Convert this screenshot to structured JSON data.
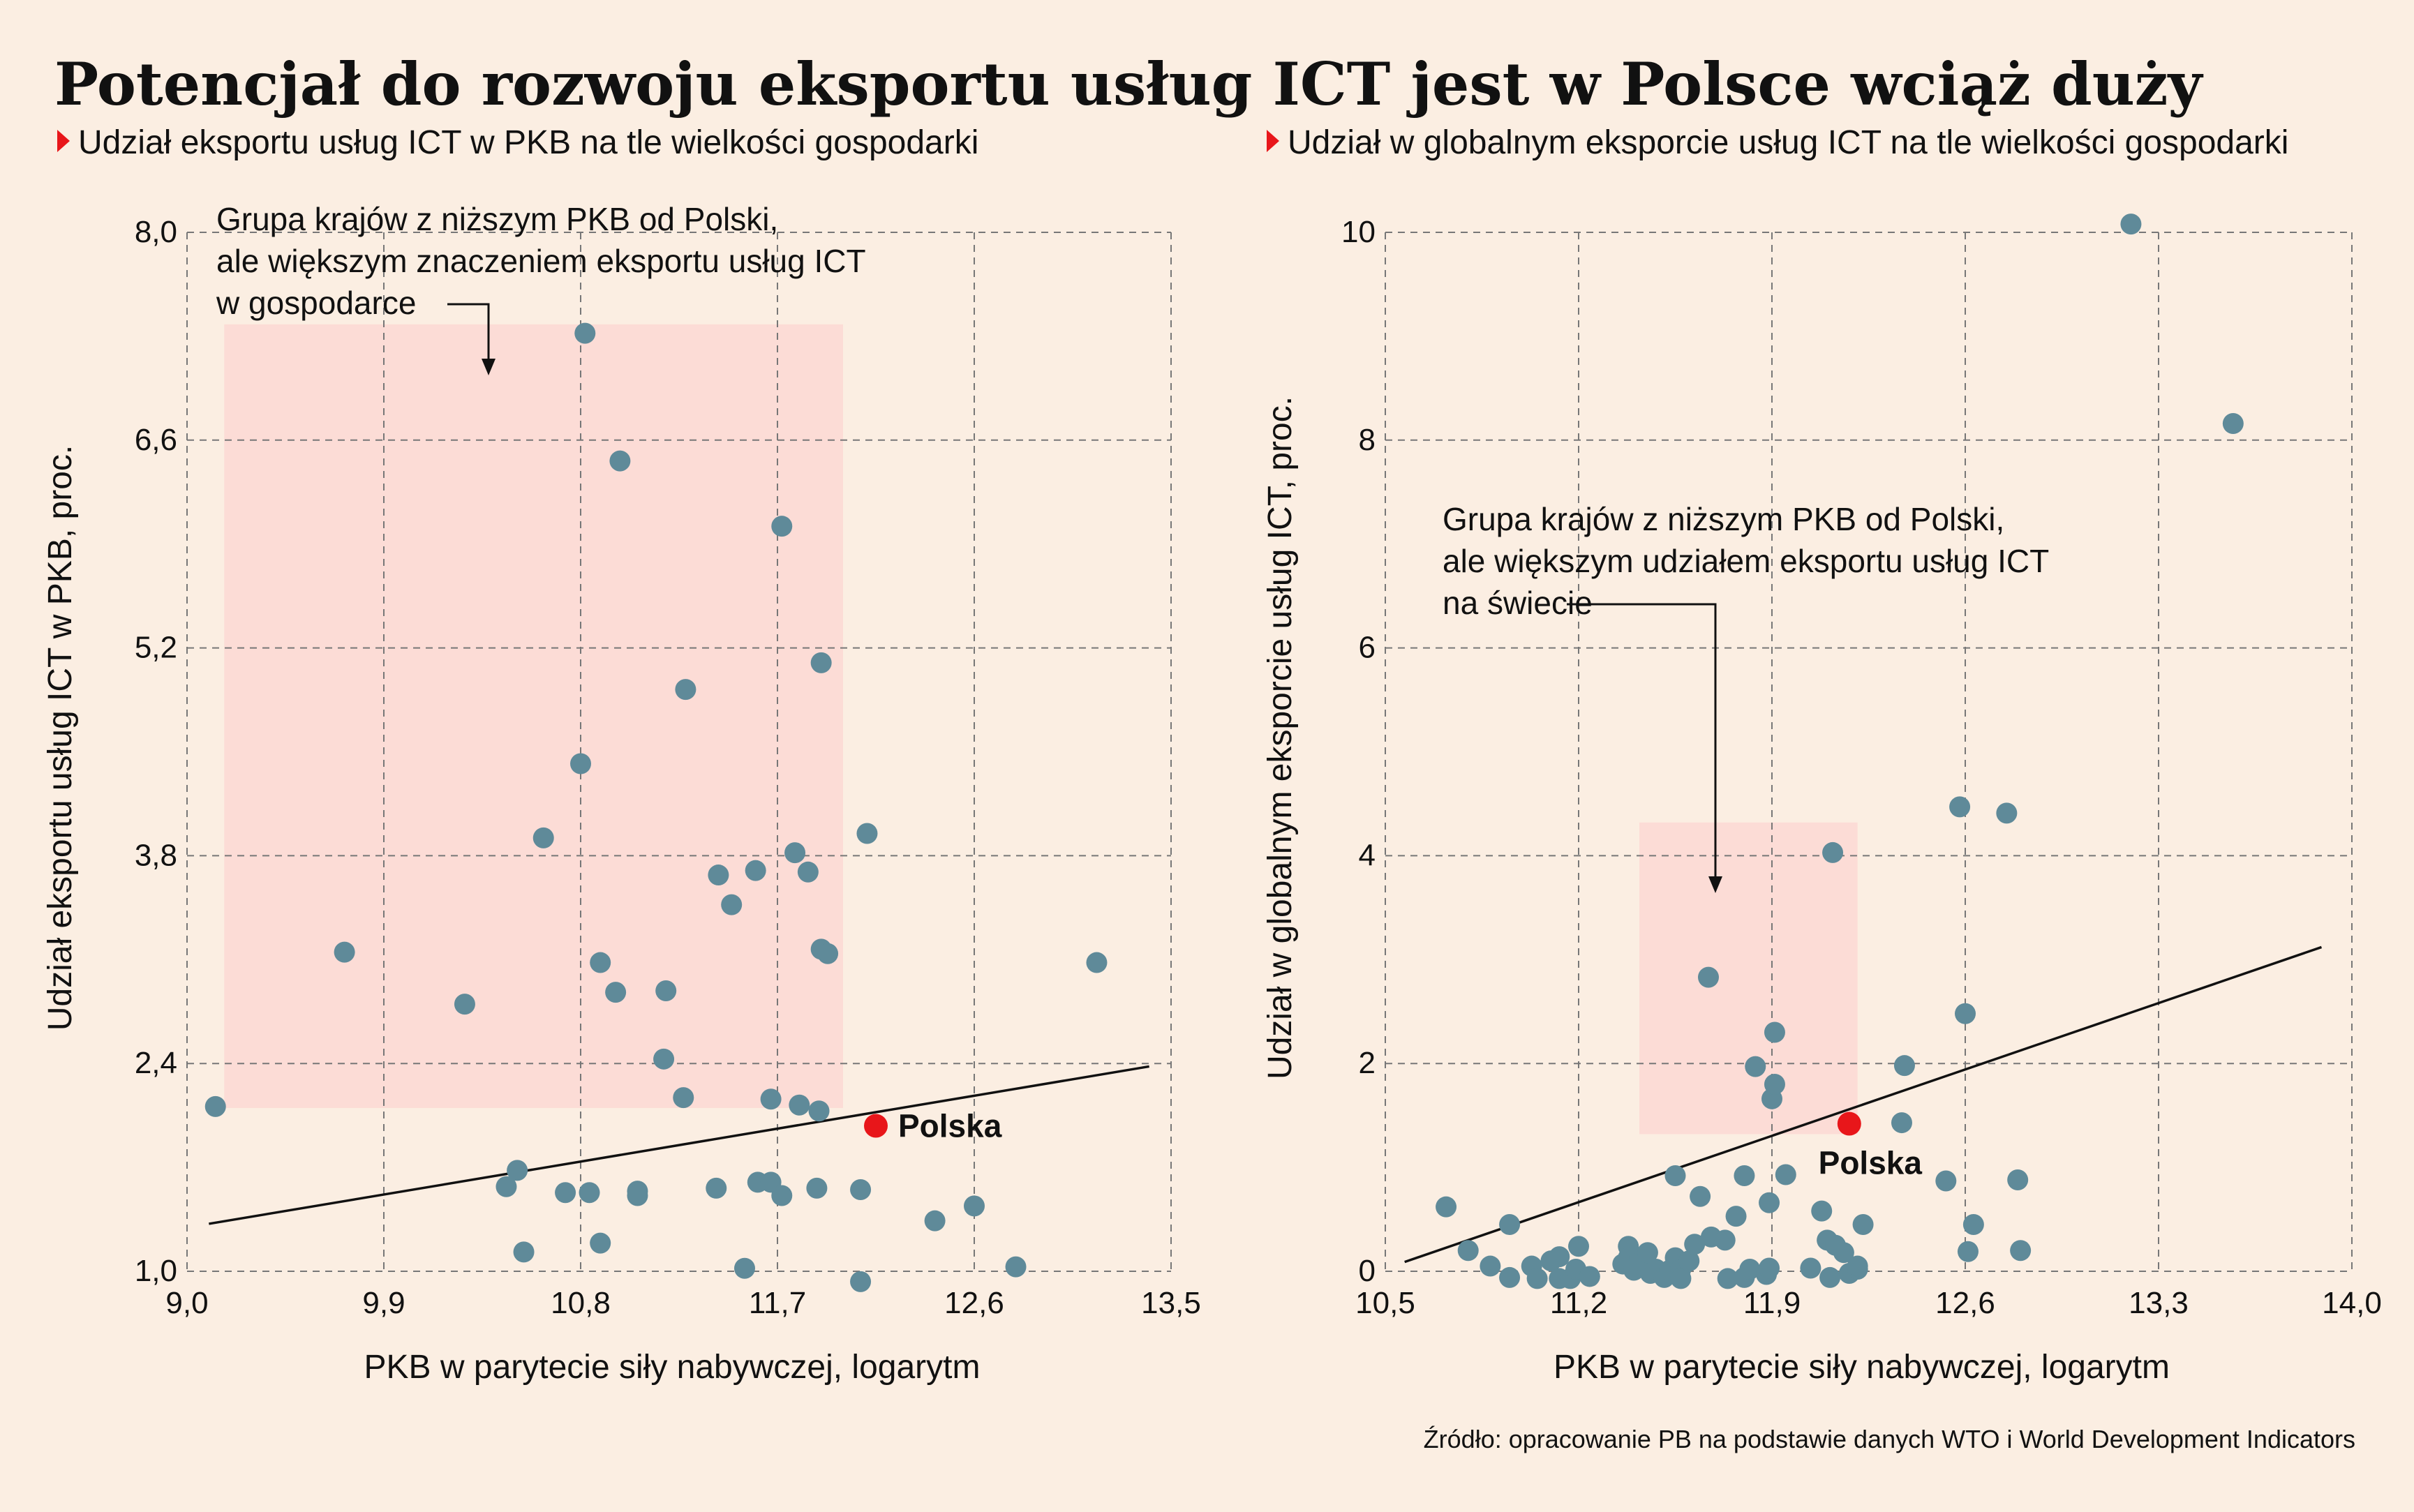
{
  "title": "Potencjał do rozwoju eksportu usług ICT jest w Polsce wciąż duży",
  "source": "Źródło: opracowanie PB na podstawie danych WTO i World Development Indicators",
  "colors": {
    "background": "#fbeee2",
    "point": "#5f8a99",
    "highlight": "#e8161a",
    "shade": "#fcdcd6",
    "marker": "#e8161a"
  },
  "chart_data": [
    {
      "type": "scatter",
      "subtitle": "Udział eksportu usług ICT w PKB na tle wielkości gospodarki",
      "xlabel": "PKB w parytecie siły nabywczej, logarytm",
      "ylabel": "Udział eksportu usług ICT w PKB, proc.",
      "xlim": [
        9.0,
        13.5
      ],
      "ylim": [
        1.0,
        8.0
      ],
      "xticks": [
        "9,0",
        "9,9",
        "10,8",
        "11,7",
        "12,6",
        "13,5"
      ],
      "yticks": [
        "1,0",
        "2,4",
        "3,8",
        "5,2",
        "6,6",
        "8,0"
      ],
      "grid": true,
      "annotation": [
        "Grupa krajów z niższym PKB od Polski,",
        "ale większym znaczeniem eksportu usług ICT",
        "w gospodarce"
      ],
      "highlight_label": "Polska",
      "highlight_point": [
        12.15,
        1.98
      ],
      "highlight_region": {
        "x": [
          9.17,
          12.0
        ],
        "y": [
          2.1,
          7.38
        ]
      },
      "trend_line": [
        [
          9.1,
          1.32
        ],
        [
          13.4,
          2.38
        ]
      ],
      "points": [
        [
          9.13,
          2.11
        ],
        [
          9.72,
          3.15
        ],
        [
          10.27,
          2.8
        ],
        [
          10.46,
          1.57
        ],
        [
          10.51,
          1.68
        ],
        [
          10.54,
          1.13
        ],
        [
          10.63,
          3.92
        ],
        [
          10.73,
          1.53
        ],
        [
          10.8,
          4.42
        ],
        [
          10.82,
          7.32
        ],
        [
          10.84,
          1.53
        ],
        [
          10.89,
          1.19
        ],
        [
          10.89,
          3.08
        ],
        [
          10.96,
          2.88
        ],
        [
          10.98,
          6.46
        ],
        [
          11.06,
          1.54
        ],
        [
          11.06,
          1.51
        ],
        [
          11.18,
          2.43
        ],
        [
          11.19,
          2.89
        ],
        [
          11.27,
          2.17
        ],
        [
          11.28,
          4.92
        ],
        [
          11.42,
          1.56
        ],
        [
          11.43,
          3.67
        ],
        [
          11.49,
          3.47
        ],
        [
          11.55,
          1.02
        ],
        [
          11.6,
          3.7
        ],
        [
          11.61,
          1.6
        ],
        [
          11.67,
          2.16
        ],
        [
          11.67,
          1.6
        ],
        [
          11.72,
          6.02
        ],
        [
          11.72,
          1.51
        ],
        [
          11.78,
          3.82
        ],
        [
          11.8,
          2.12
        ],
        [
          11.84,
          3.69
        ],
        [
          11.88,
          1.56
        ],
        [
          11.89,
          2.08
        ],
        [
          11.9,
          5.1
        ],
        [
          11.9,
          3.17
        ],
        [
          11.93,
          3.14
        ],
        [
          12.08,
          1.55
        ],
        [
          12.08,
          0.93
        ],
        [
          12.11,
          3.95
        ],
        [
          12.42,
          1.34
        ],
        [
          12.6,
          1.44
        ],
        [
          12.79,
          1.03
        ],
        [
          13.16,
          3.08
        ]
      ]
    },
    {
      "type": "scatter",
      "subtitle": "Udział w globalnym eksporcie usług ICT na tle wielkości gospodarki",
      "xlabel": "PKB w parytecie siły nabywczej, logarytm",
      "ylabel": "Udział w globalnym eksporcie usług ICT, proc.",
      "xlim": [
        10.5,
        14.0
      ],
      "ylim": [
        0,
        10
      ],
      "xticks": [
        "10,5",
        "11,2",
        "11,9",
        "12,6",
        "13,3",
        "14,0"
      ],
      "yticks": [
        "0",
        "2",
        "4",
        "6",
        "8",
        "10"
      ],
      "grid": true,
      "annotation": [
        "Grupa krajów z niższym PKB od Polski,",
        "ale większym udziałem eksportu usług ICT",
        "na świecie"
      ],
      "highlight_label": "Polska",
      "highlight_point": [
        12.18,
        1.42
      ],
      "highlight_region": {
        "x": [
          11.42,
          12.21
        ],
        "y": [
          1.32,
          4.32
        ]
      },
      "trend_line": [
        [
          10.57,
          0.09
        ],
        [
          13.89,
          3.12
        ]
      ],
      "points": [
        [
          10.72,
          0.62
        ],
        [
          10.8,
          0.2
        ],
        [
          10.88,
          0.05
        ],
        [
          10.95,
          -0.06
        ],
        [
          10.95,
          0.45
        ],
        [
          11.03,
          0.05
        ],
        [
          11.05,
          -0.07
        ],
        [
          11.1,
          0.1
        ],
        [
          11.13,
          0.14
        ],
        [
          11.13,
          -0.07
        ],
        [
          11.17,
          -0.07
        ],
        [
          11.19,
          0.02
        ],
        [
          11.2,
          0.24
        ],
        [
          11.24,
          -0.05
        ],
        [
          11.36,
          0.07
        ],
        [
          11.38,
          0.24
        ],
        [
          11.38,
          0.13
        ],
        [
          11.4,
          0.01
        ],
        [
          11.42,
          0.13
        ],
        [
          11.43,
          0.1
        ],
        [
          11.45,
          0.18
        ],
        [
          11.46,
          -0.02
        ],
        [
          11.48,
          0.02
        ],
        [
          11.51,
          -0.06
        ],
        [
          11.53,
          0.01
        ],
        [
          11.55,
          0.92
        ],
        [
          11.55,
          0.13
        ],
        [
          11.57,
          0.02
        ],
        [
          11.57,
          -0.07
        ],
        [
          11.6,
          0.1
        ],
        [
          11.62,
          0.26
        ],
        [
          11.64,
          0.72
        ],
        [
          11.67,
          2.83
        ],
        [
          11.68,
          0.33
        ],
        [
          11.73,
          0.3
        ],
        [
          11.74,
          -0.07
        ],
        [
          11.77,
          0.53
        ],
        [
          11.8,
          0.92
        ],
        [
          11.8,
          -0.06
        ],
        [
          11.82,
          0.02
        ],
        [
          11.84,
          1.97
        ],
        [
          11.88,
          -0.03
        ],
        [
          11.89,
          0.66
        ],
        [
          11.89,
          0.03
        ],
        [
          11.9,
          1.66
        ],
        [
          11.91,
          2.3
        ],
        [
          11.91,
          1.8
        ],
        [
          11.95,
          0.93
        ],
        [
          12.04,
          0.03
        ],
        [
          12.08,
          0.58
        ],
        [
          12.1,
          0.3
        ],
        [
          12.11,
          -0.06
        ],
        [
          12.12,
          4.03
        ],
        [
          12.13,
          0.25
        ],
        [
          12.16,
          0.18
        ],
        [
          12.18,
          -0.02
        ],
        [
          12.21,
          0.02
        ],
        [
          12.21,
          0.05
        ],
        [
          12.23,
          0.45
        ],
        [
          12.37,
          1.43
        ],
        [
          12.38,
          1.98
        ],
        [
          12.53,
          0.87
        ],
        [
          12.58,
          4.47
        ],
        [
          12.6,
          2.48
        ],
        [
          12.61,
          0.19
        ],
        [
          12.63,
          0.45
        ],
        [
          12.75,
          4.41
        ],
        [
          12.79,
          0.88
        ],
        [
          12.8,
          0.2
        ],
        [
          13.2,
          10.08
        ],
        [
          13.57,
          8.16
        ]
      ]
    }
  ]
}
